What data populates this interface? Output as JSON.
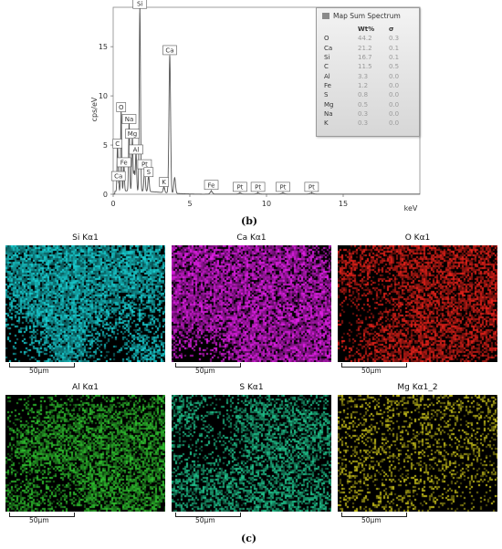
{
  "chart_data": {
    "type": "line",
    "xlabel": "keV",
    "ylabel": "cps/eV",
    "xlim": [
      0,
      20
    ],
    "ylim": [
      0,
      19
    ],
    "xticks": [
      "0",
      "5",
      "10",
      "15"
    ],
    "yticks": [
      "0",
      "5",
      "10",
      "15"
    ],
    "peaks": [
      {
        "label": "C",
        "x": 0.28,
        "y": 4.5
      },
      {
        "label": "Ca",
        "x": 0.34,
        "y": 1.2
      },
      {
        "label": "Fe",
        "x": 0.7,
        "y": 2.6
      },
      {
        "label": "O",
        "x": 0.52,
        "y": 8.2
      },
      {
        "label": "Na",
        "x": 1.04,
        "y": 7.0
      },
      {
        "label": "Mg",
        "x": 1.25,
        "y": 5.5
      },
      {
        "label": "Al",
        "x": 1.49,
        "y": 3.9
      },
      {
        "label": "Si",
        "x": 1.74,
        "y": 18.7
      },
      {
        "label": "Pt",
        "x": 2.05,
        "y": 2.4
      },
      {
        "label": "S",
        "x": 2.31,
        "y": 1.6
      },
      {
        "label": "K",
        "x": 3.31,
        "y": 0.6
      },
      {
        "label": "Ca",
        "x": 3.69,
        "y": 14.0
      },
      {
        "label": "Fe",
        "x": 6.4,
        "y": 0.3
      },
      {
        "label": "Pt",
        "x": 8.27,
        "y": 0.1
      },
      {
        "label": "Pt",
        "x": 9.44,
        "y": 0.1
      },
      {
        "label": "Pt",
        "x": 11.07,
        "y": 0.1
      },
      {
        "label": "Pt",
        "x": 12.94,
        "y": 0.1
      }
    ],
    "extra_lines": [
      {
        "x": 4.01,
        "y": 1.6
      },
      {
        "x": 1.37,
        "y": 2.0
      }
    ],
    "legend": {
      "title": "Map Sum Spectrum",
      "columns": [
        "",
        "Wt%",
        "σ"
      ],
      "rows": [
        {
          "element": "O",
          "wt": "44.2",
          "sigma": "0.3"
        },
        {
          "element": "Ca",
          "wt": "21.2",
          "sigma": "0.1"
        },
        {
          "element": "Si",
          "wt": "16.7",
          "sigma": "0.1"
        },
        {
          "element": "C",
          "wt": "11.5",
          "sigma": "0.5"
        },
        {
          "element": "Al",
          "wt": "3.3",
          "sigma": "0.0"
        },
        {
          "element": "Fe",
          "wt": "1.2",
          "sigma": "0.0"
        },
        {
          "element": "S",
          "wt": "0.8",
          "sigma": "0.0"
        },
        {
          "element": "Mg",
          "wt": "0.5",
          "sigma": "0.0"
        },
        {
          "element": "Na",
          "wt": "0.3",
          "sigma": "0.0"
        },
        {
          "element": "K",
          "wt": "0.3",
          "sigma": "0.0"
        }
      ],
      "placement": "top-right"
    }
  },
  "captions": {
    "b": "(b)",
    "c": "(c)"
  },
  "maps": [
    {
      "title": "Si Kα1",
      "scale": "50μm",
      "color": "#19d3d6",
      "density": 0.75
    },
    {
      "title": "Ca Kα1",
      "scale": "50μm",
      "color": "#e21ee8",
      "density": 0.7
    },
    {
      "title": "O Kα1",
      "scale": "50μm",
      "color": "#e8211a",
      "density": 0.55
    },
    {
      "title": "Al Kα1",
      "scale": "50μm",
      "color": "#2fc32f",
      "density": 0.55
    },
    {
      "title": "S Kα1",
      "scale": "50μm",
      "color": "#20c890",
      "density": 0.45
    },
    {
      "title": "Mg Kα1_2",
      "scale": "50μm",
      "color": "#c9c21a",
      "density": 0.18
    }
  ]
}
